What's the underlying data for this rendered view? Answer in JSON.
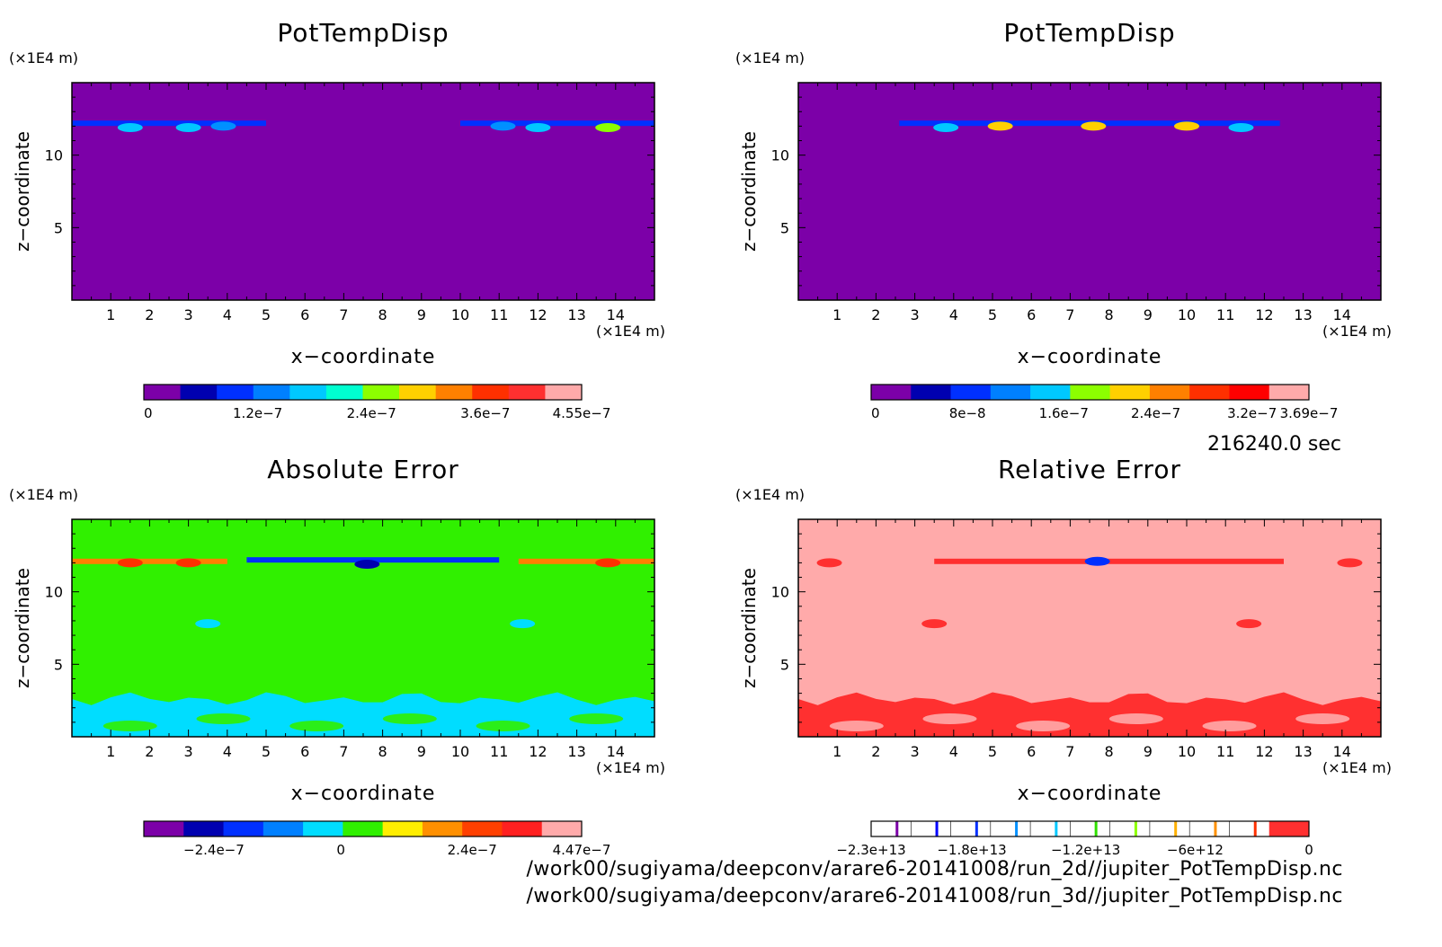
{
  "chart_data": [
    {
      "type": "heatmap",
      "title": "PotTempDisp",
      "xlabel": "x−coordinate",
      "ylabel": "z−coordinate",
      "x_unit": "(×1E4 m)",
      "y_unit": "(×1E4 m)",
      "xlim": [
        0,
        15
      ],
      "ylim": [
        0,
        15
      ],
      "xticks": [
        "1",
        "2",
        "3",
        "4",
        "5",
        "6",
        "7",
        "8",
        "9",
        "10",
        "11",
        "12",
        "13",
        "14"
      ],
      "yticks": [
        "5",
        "10"
      ],
      "background_color": "#7c00a8",
      "features": [
        {
          "kind": "band",
          "x0": 0,
          "x1": 5,
          "z": 12.2,
          "color": "#0030ff"
        },
        {
          "kind": "band",
          "x0": 10,
          "x1": 15,
          "z": 12.2,
          "color": "#0030ff"
        },
        {
          "kind": "blob",
          "x": 1.5,
          "z": 11.9,
          "color": "#00c8ff"
        },
        {
          "kind": "blob",
          "x": 3.0,
          "z": 11.9,
          "color": "#00c8ff"
        },
        {
          "kind": "blob",
          "x": 3.9,
          "z": 12.0,
          "color": "#0090ff"
        },
        {
          "kind": "blob",
          "x": 11.1,
          "z": 12.0,
          "color": "#0090ff"
        },
        {
          "kind": "blob",
          "x": 12.0,
          "z": 11.9,
          "color": "#00c8ff"
        },
        {
          "kind": "blob",
          "x": 13.8,
          "z": 11.9,
          "color": "#8cff00"
        }
      ],
      "colorbar": {
        "colors": [
          "#7c00a8",
          "#0000b0",
          "#0030ff",
          "#0080ff",
          "#00c8ff",
          "#00ffd0",
          "#8cff00",
          "#ffd000",
          "#ff8000",
          "#ff3000",
          "#ff3030",
          "#ffaaaa"
        ],
        "tick_labels": [
          "0",
          "1.2e−7",
          "2.4e−7",
          "3.6e−7",
          "4.55e−7"
        ],
        "tick_fracs": [
          0,
          0.26,
          0.52,
          0.78,
          1.0
        ]
      }
    },
    {
      "type": "heatmap",
      "title": "PotTempDisp",
      "xlabel": "x−coordinate",
      "ylabel": "z−coordinate",
      "x_unit": "(×1E4 m)",
      "y_unit": "(×1E4 m)",
      "xlim": [
        0,
        15
      ],
      "ylim": [
        0,
        15
      ],
      "xticks": [
        "1",
        "2",
        "3",
        "4",
        "5",
        "6",
        "7",
        "8",
        "9",
        "10",
        "11",
        "12",
        "13",
        "14"
      ],
      "yticks": [
        "5",
        "10"
      ],
      "background_color": "#7c00a8",
      "features": [
        {
          "kind": "band",
          "x0": 2.6,
          "x1": 12.4,
          "z": 12.2,
          "color": "#0030ff"
        },
        {
          "kind": "blob",
          "x": 3.8,
          "z": 11.9,
          "color": "#00c8ff"
        },
        {
          "kind": "blob",
          "x": 5.2,
          "z": 12.0,
          "color": "#ffd000"
        },
        {
          "kind": "blob",
          "x": 7.6,
          "z": 12.0,
          "color": "#ffd000"
        },
        {
          "kind": "blob",
          "x": 10.0,
          "z": 12.0,
          "color": "#ffd000"
        },
        {
          "kind": "blob",
          "x": 11.4,
          "z": 11.9,
          "color": "#00c8ff"
        }
      ],
      "colorbar": {
        "colors": [
          "#7c00a8",
          "#0000b0",
          "#0030ff",
          "#0080ff",
          "#00c8ff",
          "#8cff00",
          "#ffd000",
          "#ff8000",
          "#ff3000",
          "#ff0000",
          "#ffaaaa"
        ],
        "tick_labels": [
          "0",
          "8e−8",
          "1.6e−7",
          "2.4e−7",
          "3.2e−7",
          "3.69e−7"
        ],
        "tick_fracs": [
          0,
          0.22,
          0.44,
          0.65,
          0.87,
          1.0
        ]
      }
    },
    {
      "type": "heatmap",
      "title": "Absolute Error",
      "xlabel": "x−coordinate",
      "ylabel": "z−coordinate",
      "x_unit": "(×1E4 m)",
      "y_unit": "(×1E4 m)",
      "xlim": [
        0,
        15
      ],
      "ylim": [
        0,
        15
      ],
      "xticks": [
        "1",
        "2",
        "3",
        "4",
        "5",
        "6",
        "7",
        "8",
        "9",
        "10",
        "11",
        "12",
        "13",
        "14"
      ],
      "yticks": [
        "5",
        "10"
      ],
      "background_color": "#30f000",
      "features": [
        {
          "kind": "lowband",
          "z0": 0,
          "z1": 2.6,
          "color": "#00ddff"
        },
        {
          "kind": "band",
          "x0": 4.5,
          "x1": 11,
          "z": 12.2,
          "color": "#0030ff"
        },
        {
          "kind": "band",
          "x0": 0,
          "x1": 4,
          "z": 12.1,
          "color": "#ff8000"
        },
        {
          "kind": "band",
          "x0": 11.5,
          "x1": 15,
          "z": 12.1,
          "color": "#ff8000"
        },
        {
          "kind": "blob",
          "x": 1.5,
          "z": 12.0,
          "color": "#ff3000"
        },
        {
          "kind": "blob",
          "x": 3.0,
          "z": 12.0,
          "color": "#ff3000"
        },
        {
          "kind": "blob",
          "x": 13.8,
          "z": 12.0,
          "color": "#ff3000"
        },
        {
          "kind": "blob",
          "x": 7.6,
          "z": 11.9,
          "color": "#0000b0"
        },
        {
          "kind": "blob",
          "x": 3.5,
          "z": 7.8,
          "color": "#00ddff"
        },
        {
          "kind": "blob",
          "x": 11.6,
          "z": 7.8,
          "color": "#00ddff"
        }
      ],
      "colorbar": {
        "colors": [
          "#7c00a8",
          "#0000b0",
          "#0030ff",
          "#0080ff",
          "#00ddff",
          "#30f000",
          "#ffee00",
          "#ff9000",
          "#ff4000",
          "#ff2020",
          "#ffaaaa"
        ],
        "tick_labels": [
          "−2.4e−7",
          "0",
          "2.4e−7",
          "4.47e−7"
        ],
        "tick_fracs": [
          0.16,
          0.45,
          0.75,
          1.0
        ]
      }
    },
    {
      "type": "heatmap",
      "title": "Relative Error",
      "xlabel": "x−coordinate",
      "ylabel": "z−coordinate",
      "x_unit": "(×1E4 m)",
      "y_unit": "(×1E4 m)",
      "xlim": [
        0,
        15
      ],
      "ylim": [
        0,
        15
      ],
      "xticks": [
        "1",
        "2",
        "3",
        "4",
        "5",
        "6",
        "7",
        "8",
        "9",
        "10",
        "11",
        "12",
        "13",
        "14"
      ],
      "yticks": [
        "5",
        "10"
      ],
      "background_color": "#ffaaaa",
      "features": [
        {
          "kind": "lowband",
          "z0": 0,
          "z1": 2.6,
          "color": "#ff3030"
        },
        {
          "kind": "band",
          "x0": 3.5,
          "x1": 12.5,
          "z": 12.1,
          "color": "#ff3030"
        },
        {
          "kind": "blob",
          "x": 0.8,
          "z": 12.0,
          "color": "#ff3030"
        },
        {
          "kind": "blob",
          "x": 14.2,
          "z": 12.0,
          "color": "#ff3030"
        },
        {
          "kind": "blob",
          "x": 7.7,
          "z": 12.1,
          "color": "#0030ff"
        },
        {
          "kind": "blob",
          "x": 3.5,
          "z": 7.8,
          "color": "#ff3030"
        },
        {
          "kind": "blob",
          "x": 11.6,
          "z": 7.8,
          "color": "#ff3030"
        }
      ],
      "colorbar": {
        "colors": [
          "#ffffff",
          "#ffffff",
          "#ffffff",
          "#ffffff",
          "#ffffff",
          "#ffffff",
          "#ffffff",
          "#ffffff",
          "#ffffff",
          "#ffffff",
          "#ff3030"
        ],
        "line_colors": [
          "#7c00a8",
          "#0000ff",
          "#0030ff",
          "#0090ff",
          "#00c8ff",
          "#30e000",
          "#8cff00",
          "#ffb000",
          "#ff9000",
          "#ff3000"
        ],
        "tick_labels": [
          "−2.3e+13",
          "−1.8e+13",
          "−1.2e+13",
          "−6e+12",
          "0"
        ],
        "tick_fracs": [
          0,
          0.23,
          0.49,
          0.74,
          1.0
        ]
      }
    }
  ],
  "time_label": "216240.0 sec",
  "footer_lines": [
    "/work00/sugiyama/deepconv/arare6-20141008/run_2d//jupiter_PotTempDisp.nc",
    "/work00/sugiyama/deepconv/arare6-20141008/run_3d//jupiter_PotTempDisp.nc"
  ]
}
